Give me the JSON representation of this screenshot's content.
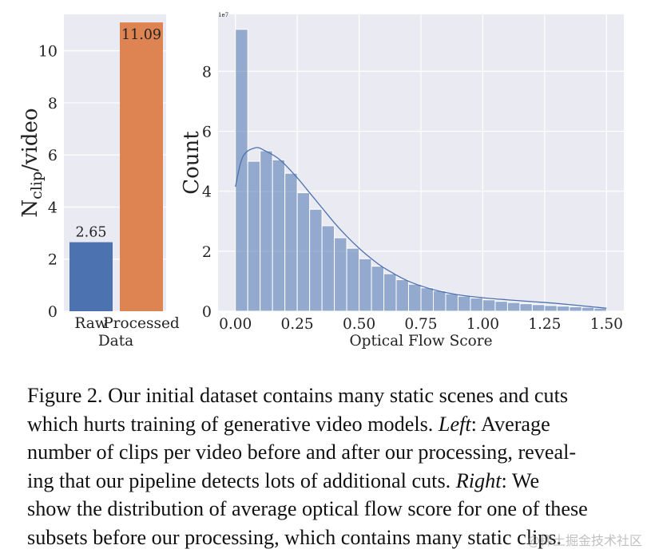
{
  "chart_data": [
    {
      "type": "bar",
      "categories": [
        "Raw",
        "Processed"
      ],
      "xlabel": "Data",
      "ylabel_main": "N",
      "ylabel_sub": "clip",
      "ylabel_rest": "/video",
      "values": [
        2.65,
        11.09
      ],
      "value_labels": [
        "2.65",
        "11.09"
      ],
      "bar_colors": [
        "#4c72b0",
        "#dd8452"
      ],
      "ylim": [
        0,
        11.4
      ],
      "yticks": [
        0,
        2,
        4,
        6,
        8,
        10
      ],
      "grid": true
    },
    {
      "type": "bar",
      "subtype": "histogram with kde line",
      "xlabel": "Optical Flow Score",
      "ylabel": "Count",
      "y_scale_label": "1e7",
      "bin_width": 0.05,
      "bin_start": 0.0,
      "values": [
        9.4,
        5.0,
        5.35,
        5.05,
        4.6,
        3.95,
        3.4,
        2.85,
        2.45,
        2.1,
        1.75,
        1.5,
        1.25,
        1.05,
        0.9,
        0.78,
        0.68,
        0.58,
        0.5,
        0.44,
        0.38,
        0.33,
        0.29,
        0.25,
        0.22,
        0.19,
        0.17,
        0.15,
        0.13,
        0.1
      ],
      "kde": [
        [
          0.0,
          4.15
        ],
        [
          0.03,
          5.15
        ],
        [
          0.08,
          5.45
        ],
        [
          0.12,
          5.35
        ],
        [
          0.18,
          5.05
        ],
        [
          0.25,
          4.45
        ],
        [
          0.3,
          3.95
        ],
        [
          0.35,
          3.45
        ],
        [
          0.4,
          2.95
        ],
        [
          0.45,
          2.5
        ],
        [
          0.5,
          2.1
        ],
        [
          0.55,
          1.75
        ],
        [
          0.6,
          1.45
        ],
        [
          0.7,
          1.0
        ],
        [
          0.8,
          0.72
        ],
        [
          0.9,
          0.55
        ],
        [
          1.0,
          0.45
        ],
        [
          1.1,
          0.38
        ],
        [
          1.2,
          0.32
        ],
        [
          1.3,
          0.26
        ],
        [
          1.4,
          0.18
        ],
        [
          1.45,
          0.14
        ],
        [
          1.5,
          0.1
        ]
      ],
      "xlim": [
        -0.07,
        1.57
      ],
      "ylim": [
        0,
        9.9
      ],
      "xticks": [
        "0.00",
        "0.25",
        "0.50",
        "0.75",
        "1.00",
        "1.25",
        "1.50"
      ],
      "yticks": [
        0,
        2,
        4,
        6,
        8
      ],
      "bar_color": "#4c72b0",
      "grid": true
    }
  ],
  "caption": {
    "line1": "Figure 2. Our initial dataset contains many static scenes and cuts",
    "line2_a": "which hurts training of generative video models.",
    "line2_left": "Left",
    "line2_b": ": Average",
    "line3": "number of clips per video before and after our processing, reveal-",
    "line4_a": "ing that our pipeline detects lots of additional cuts.",
    "line4_right": "Right",
    "line4_b": ": We",
    "line5": "show the distribution of average optical flow score for one of these",
    "line6": "subsets before our processing, which contains many static clips."
  },
  "watermark": "@稀土掘金技术社区"
}
